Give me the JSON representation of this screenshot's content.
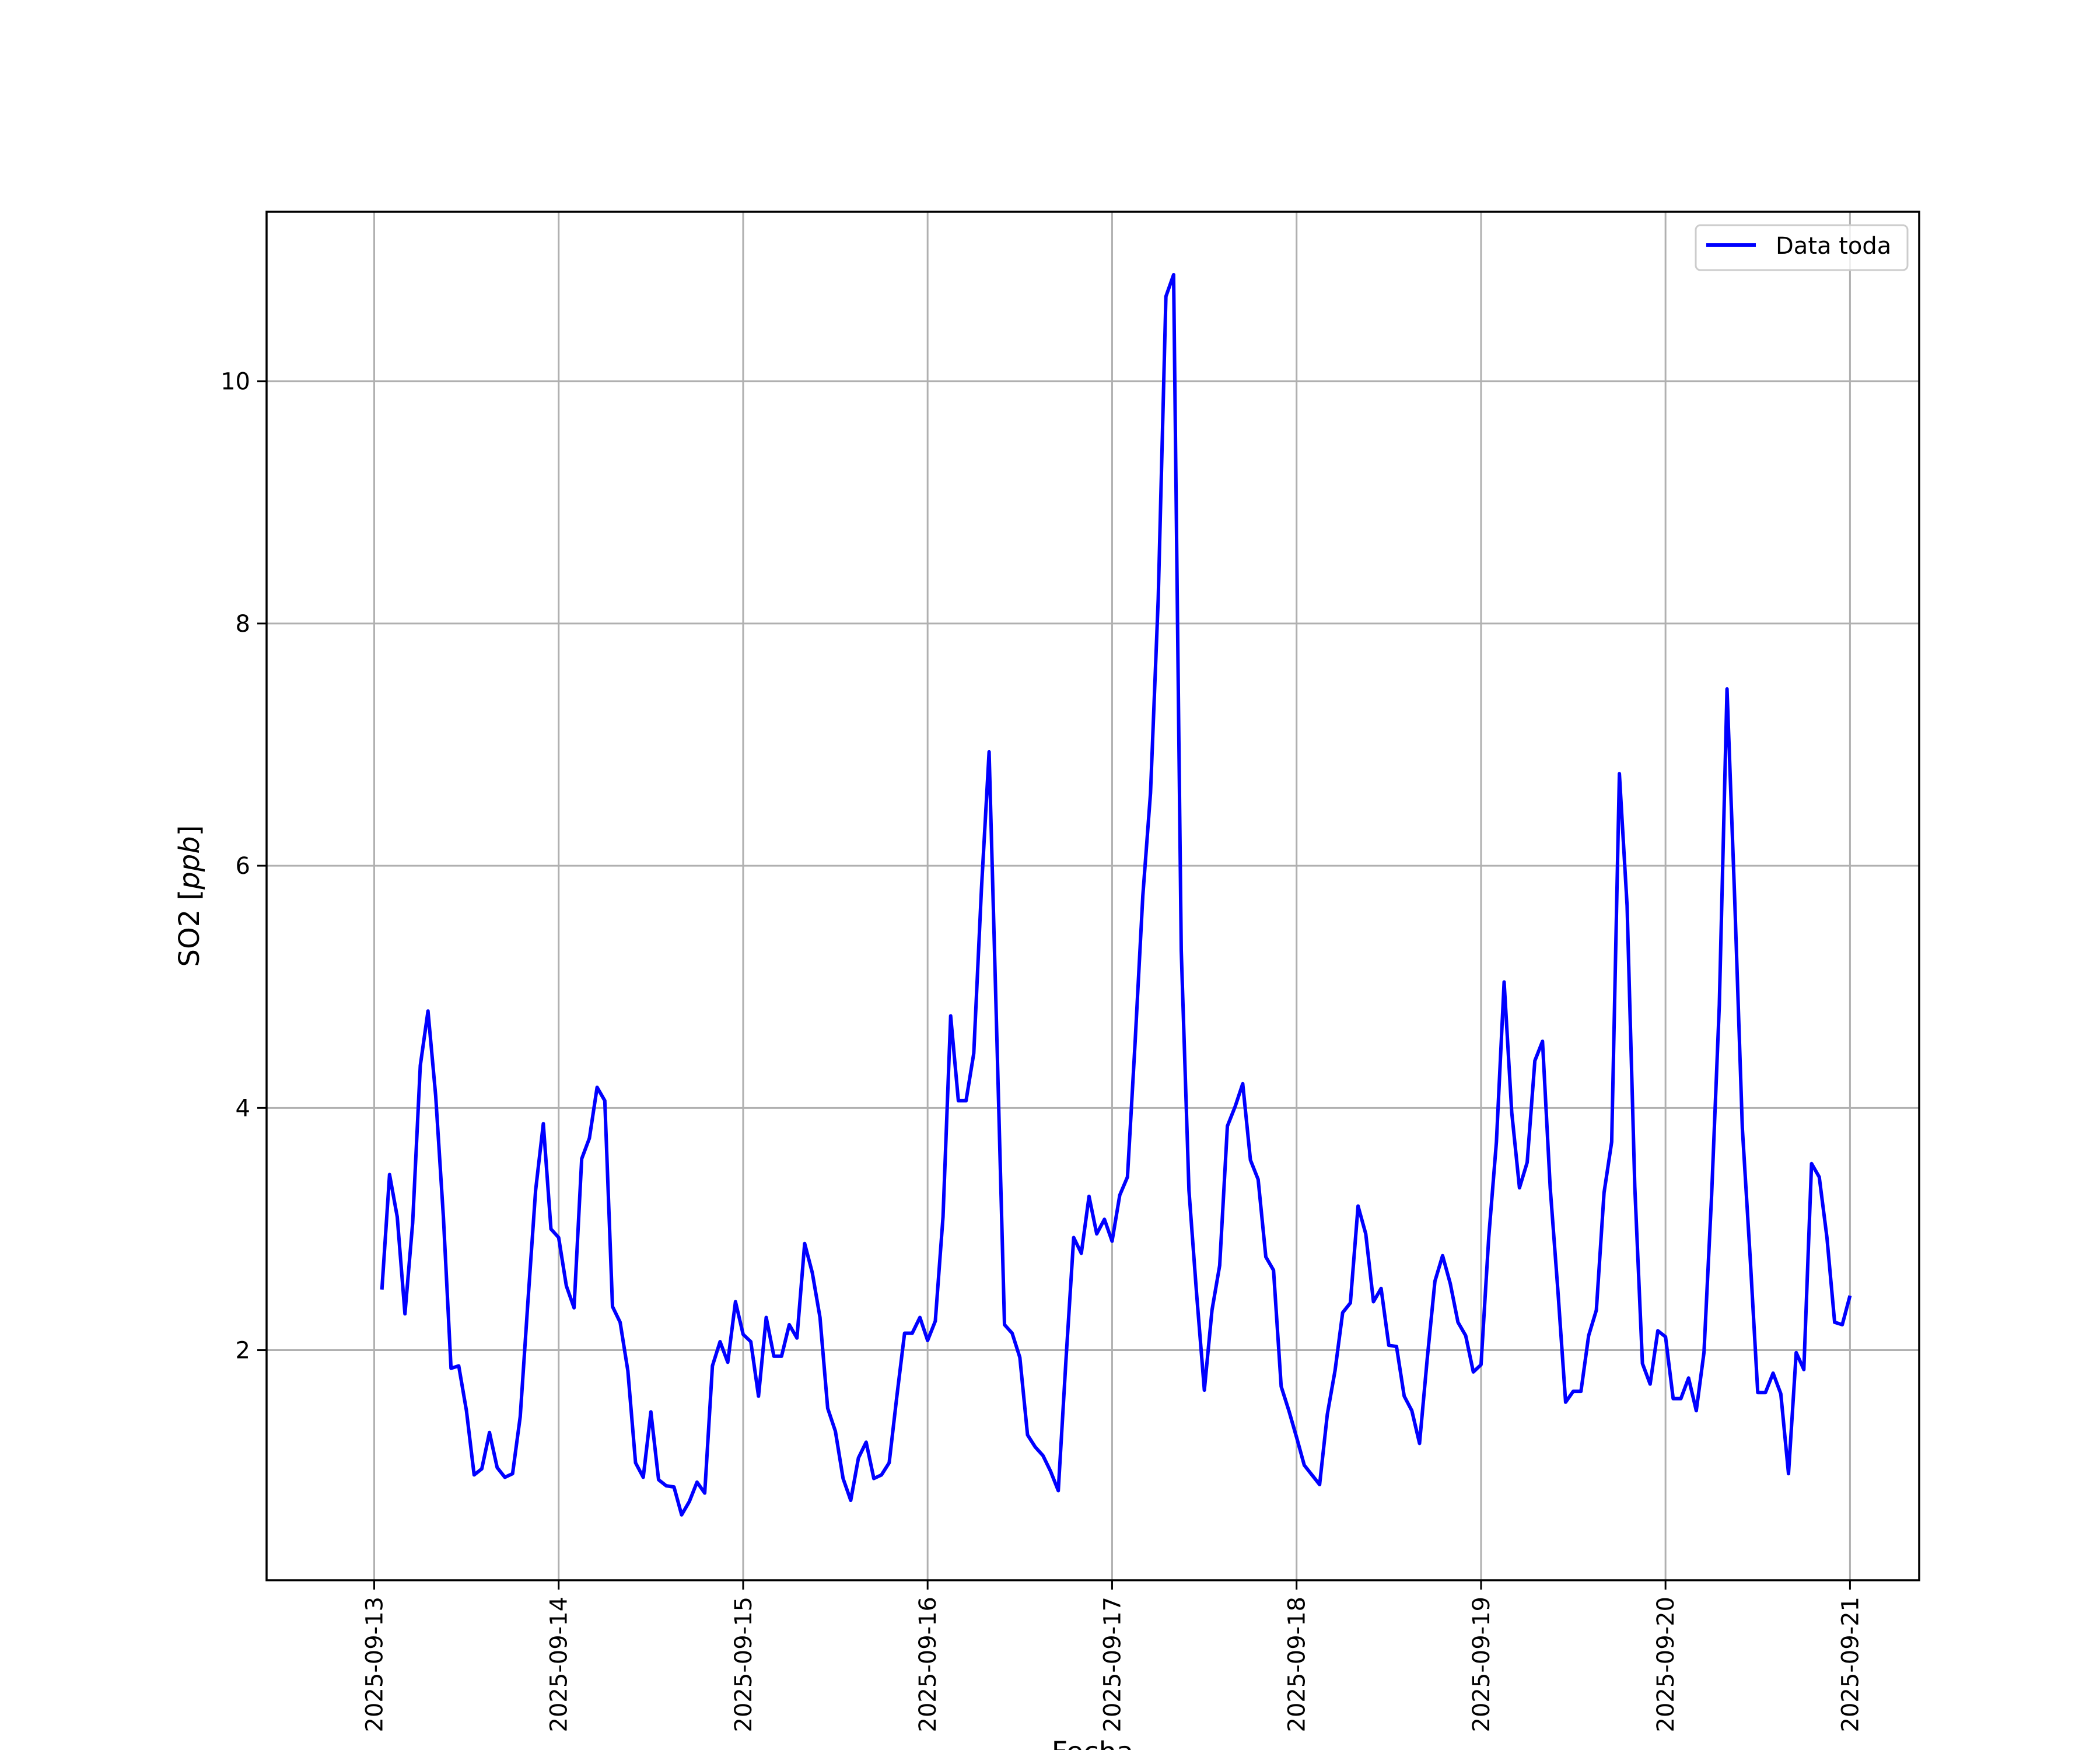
{
  "chart_data": {
    "type": "line",
    "title": "",
    "xlabel": "Fecha",
    "ylabel": "SO2 [ppb]",
    "ylabel_parts": {
      "text": "SO2 [",
      "italic": "ppb",
      "close": "]"
    },
    "xlim": [
      "2025-09-12 10:00",
      "2025-09-21 09:00"
    ],
    "ylim": [
      0.1,
      11.4
    ],
    "grid": true,
    "legend": "top-right",
    "x_ticks": [
      "2025-09-13",
      "2025-09-14",
      "2025-09-15",
      "2025-09-16",
      "2025-09-17",
      "2025-09-18",
      "2025-09-19",
      "2025-09-20",
      "2025-09-21"
    ],
    "y_ticks": [
      2,
      4,
      6,
      8,
      10
    ],
    "x": [
      "2025-09-13 01:00",
      "2025-09-13 02:00",
      "2025-09-13 03:00",
      "2025-09-13 04:00",
      "2025-09-13 05:00",
      "2025-09-13 06:00",
      "2025-09-13 07:00",
      "2025-09-13 08:00",
      "2025-09-13 09:00",
      "2025-09-13 10:00",
      "2025-09-13 11:00",
      "2025-09-13 12:00",
      "2025-09-13 13:00",
      "2025-09-13 14:00",
      "2025-09-13 15:00",
      "2025-09-13 16:00",
      "2025-09-13 17:00",
      "2025-09-13 18:00",
      "2025-09-13 19:00",
      "2025-09-13 20:00",
      "2025-09-13 21:00",
      "2025-09-13 22:00",
      "2025-09-13 23:00",
      "2025-09-14 00:00",
      "2025-09-14 01:00",
      "2025-09-14 02:00",
      "2025-09-14 03:00",
      "2025-09-14 04:00",
      "2025-09-14 05:00",
      "2025-09-14 06:00",
      "2025-09-14 07:00",
      "2025-09-14 08:00",
      "2025-09-14 09:00",
      "2025-09-14 10:00",
      "2025-09-14 11:00",
      "2025-09-14 12:00",
      "2025-09-14 13:00",
      "2025-09-14 14:00",
      "2025-09-14 15:00",
      "2025-09-14 16:00",
      "2025-09-14 17:00",
      "2025-09-14 18:00",
      "2025-09-14 19:00",
      "2025-09-14 20:00",
      "2025-09-14 21:00",
      "2025-09-14 22:00",
      "2025-09-14 23:00",
      "2025-09-15 00:00",
      "2025-09-15 01:00",
      "2025-09-15 02:00",
      "2025-09-15 03:00",
      "2025-09-15 04:00",
      "2025-09-15 05:00",
      "2025-09-15 06:00",
      "2025-09-15 07:00",
      "2025-09-15 08:00",
      "2025-09-15 09:00",
      "2025-09-15 10:00",
      "2025-09-15 11:00",
      "2025-09-15 12:00",
      "2025-09-15 13:00",
      "2025-09-15 14:00",
      "2025-09-15 15:00",
      "2025-09-15 16:00",
      "2025-09-15 17:00",
      "2025-09-15 18:00",
      "2025-09-15 19:00",
      "2025-09-15 20:00",
      "2025-09-15 21:00",
      "2025-09-15 22:00",
      "2025-09-15 23:00",
      "2025-09-16 00:00",
      "2025-09-16 01:00",
      "2025-09-16 02:00",
      "2025-09-16 03:00",
      "2025-09-16 04:00",
      "2025-09-16 05:00",
      "2025-09-16 06:00",
      "2025-09-16 07:00",
      "2025-09-16 08:00",
      "2025-09-16 09:00",
      "2025-09-16 10:00",
      "2025-09-16 11:00",
      "2025-09-16 12:00",
      "2025-09-16 13:00",
      "2025-09-16 14:00",
      "2025-09-16 15:00",
      "2025-09-16 16:00",
      "2025-09-16 17:00",
      "2025-09-16 18:00",
      "2025-09-16 19:00",
      "2025-09-16 20:00",
      "2025-09-16 21:00",
      "2025-09-16 22:00",
      "2025-09-16 23:00",
      "2025-09-17 00:00",
      "2025-09-17 01:00",
      "2025-09-17 02:00",
      "2025-09-17 03:00",
      "2025-09-17 04:00",
      "2025-09-17 05:00",
      "2025-09-17 06:00",
      "2025-09-17 07:00",
      "2025-09-17 08:00",
      "2025-09-17 09:00",
      "2025-09-17 10:00",
      "2025-09-17 11:00",
      "2025-09-17 12:00",
      "2025-09-17 13:00",
      "2025-09-17 14:00",
      "2025-09-17 15:00",
      "2025-09-17 16:00",
      "2025-09-17 17:00",
      "2025-09-17 18:00",
      "2025-09-17 19:00",
      "2025-09-17 20:00",
      "2025-09-17 21:00",
      "2025-09-17 22:00",
      "2025-09-17 23:00",
      "2025-09-18 00:00",
      "2025-09-18 01:00",
      "2025-09-18 02:00",
      "2025-09-18 03:00",
      "2025-09-18 04:00",
      "2025-09-18 05:00",
      "2025-09-18 06:00",
      "2025-09-18 07:00",
      "2025-09-18 08:00",
      "2025-09-18 09:00",
      "2025-09-18 10:00",
      "2025-09-18 11:00",
      "2025-09-18 12:00",
      "2025-09-18 13:00",
      "2025-09-18 14:00",
      "2025-09-18 15:00",
      "2025-09-18 16:00",
      "2025-09-18 17:00",
      "2025-09-18 18:00",
      "2025-09-18 19:00",
      "2025-09-18 20:00",
      "2025-09-18 21:00",
      "2025-09-18 22:00",
      "2025-09-18 23:00",
      "2025-09-19 00:00",
      "2025-09-19 01:00",
      "2025-09-19 02:00",
      "2025-09-19 03:00",
      "2025-09-19 04:00",
      "2025-09-19 05:00",
      "2025-09-19 06:00",
      "2025-09-19 07:00",
      "2025-09-19 08:00",
      "2025-09-19 09:00",
      "2025-09-19 10:00",
      "2025-09-19 11:00",
      "2025-09-19 12:00",
      "2025-09-19 13:00",
      "2025-09-19 14:00",
      "2025-09-19 15:00",
      "2025-09-19 16:00",
      "2025-09-19 17:00",
      "2025-09-19 18:00",
      "2025-09-19 19:00",
      "2025-09-19 20:00",
      "2025-09-19 21:00",
      "2025-09-19 22:00",
      "2025-09-19 23:00",
      "2025-09-20 00:00",
      "2025-09-20 01:00",
      "2025-09-20 02:00",
      "2025-09-20 03:00",
      "2025-09-20 04:00",
      "2025-09-20 05:00",
      "2025-09-20 06:00",
      "2025-09-20 07:00",
      "2025-09-20 08:00",
      "2025-09-20 09:00",
      "2025-09-20 10:00",
      "2025-09-20 11:00",
      "2025-09-20 12:00",
      "2025-09-20 13:00",
      "2025-09-20 14:00",
      "2025-09-20 15:00",
      "2025-09-20 16:00",
      "2025-09-20 17:00",
      "2025-09-20 18:00",
      "2025-09-20 19:00",
      "2025-09-20 20:00",
      "2025-09-20 21:00",
      "2025-09-20 22:00",
      "2025-09-20 23:00",
      "2025-09-21 00:00"
    ],
    "series": [
      {
        "name": "Data toda",
        "color": "#0000ff",
        "values": [
          2.5,
          3.45,
          3.1,
          2.3,
          3.05,
          4.35,
          4.8,
          4.1,
          3.1,
          1.85,
          1.87,
          1.5,
          0.97,
          1.02,
          1.32,
          1.03,
          0.95,
          0.98,
          1.45,
          2.4,
          3.32,
          3.87,
          3.0,
          2.93,
          2.53,
          2.35,
          3.58,
          3.75,
          4.17,
          4.06,
          2.36,
          2.23,
          1.83,
          1.07,
          0.95,
          1.49,
          0.93,
          0.88,
          0.87,
          0.64,
          0.75,
          0.91,
          0.82,
          1.87,
          2.07,
          1.9,
          2.4,
          2.13,
          2.07,
          1.62,
          2.27,
          1.95,
          1.95,
          2.21,
          2.1,
          2.88,
          2.64,
          2.27,
          1.52,
          1.33,
          0.94,
          0.76,
          1.11,
          1.24,
          0.94,
          0.97,
          1.07,
          1.62,
          2.14,
          2.14,
          2.27,
          2.08,
          2.24,
          3.1,
          4.76,
          4.06,
          4.06,
          4.45,
          5.8,
          6.94,
          4.6,
          2.21,
          2.14,
          1.94,
          1.3,
          1.2,
          1.13,
          1.0,
          0.84,
          1.92,
          2.93,
          2.8,
          3.27,
          2.96,
          3.08,
          2.9,
          3.28,
          3.43,
          4.55,
          5.75,
          6.6,
          8.2,
          10.7,
          10.88,
          5.3,
          3.32,
          2.46,
          1.67,
          2.33,
          2.7,
          3.85,
          4.01,
          4.2,
          3.57,
          3.41,
          2.77,
          2.66,
          1.7,
          1.5,
          1.28,
          1.05,
          0.97,
          0.89,
          1.47,
          1.83,
          2.31,
          2.39,
          3.19,
          2.96,
          2.4,
          2.51,
          2.04,
          2.03,
          1.62,
          1.5,
          1.23,
          1.93,
          2.57,
          2.78,
          2.55,
          2.23,
          2.12,
          1.82,
          1.88,
          2.93,
          3.72,
          5.04,
          3.96,
          3.34,
          3.55,
          4.39,
          4.55,
          3.34,
          2.49,
          1.57,
          1.66,
          1.66,
          2.12,
          2.33,
          3.3,
          3.72,
          6.76,
          5.67,
          3.35,
          1.89,
          1.72,
          2.16,
          2.11,
          1.6,
          1.6,
          1.77,
          1.5,
          1.98,
          3.28,
          4.85,
          7.46,
          5.72,
          3.83,
          2.78,
          1.65,
          1.65,
          1.81,
          1.64,
          0.98,
          1.98,
          1.84,
          3.54,
          3.43,
          2.93,
          2.23,
          2.21,
          2.45
        ]
      }
    ]
  }
}
